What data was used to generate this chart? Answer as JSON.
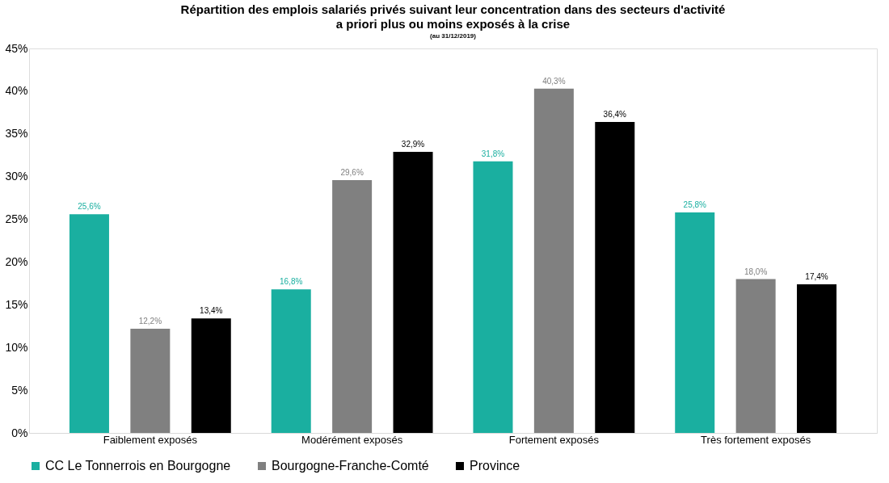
{
  "chart_data": {
    "type": "bar",
    "title": "Répartition des emplois salariés privés suivant leur concentration dans des secteurs d'activité a priori plus ou moins exposés à la crise",
    "subtitle": "(au 31/12/2019)",
    "categories": [
      "Faiblement exposés",
      "Modérément exposés",
      "Fortement exposés",
      "Très fortement exposés"
    ],
    "series": [
      {
        "name": "CC Le Tonnerrois en Bourgogne",
        "color": "#1aafa0",
        "values": [
          25.6,
          16.8,
          31.8,
          25.8
        ],
        "value_labels": [
          "25,6%",
          "16,8%",
          "31,8%",
          "25,8%"
        ]
      },
      {
        "name": "Bourgogne-Franche-Comté",
        "color": "#808080",
        "values": [
          12.2,
          29.6,
          40.3,
          18.0
        ],
        "value_labels": [
          "12,2%",
          "29,6%",
          "40,3%",
          "18,0%"
        ]
      },
      {
        "name": "Province",
        "color": "#000000",
        "values": [
          13.4,
          32.9,
          36.4,
          17.4
        ],
        "value_labels": [
          "13,4%",
          "32,9%",
          "36,4%",
          "17,4%"
        ]
      }
    ],
    "ylim": [
      0,
      45
    ],
    "yticks": [
      {
        "value": 0,
        "label": "0%"
      },
      {
        "value": 5,
        "label": "5%"
      },
      {
        "value": 10,
        "label": "10%"
      },
      {
        "value": 15,
        "label": "15%"
      },
      {
        "value": 20,
        "label": "20%"
      },
      {
        "value": 25,
        "label": "25%"
      },
      {
        "value": 30,
        "label": "30%"
      },
      {
        "value": 35,
        "label": "35%"
      },
      {
        "value": 40,
        "label": "40%"
      },
      {
        "value": 45,
        "label": "45%"
      }
    ],
    "grid": false,
    "legend": "bottom"
  }
}
